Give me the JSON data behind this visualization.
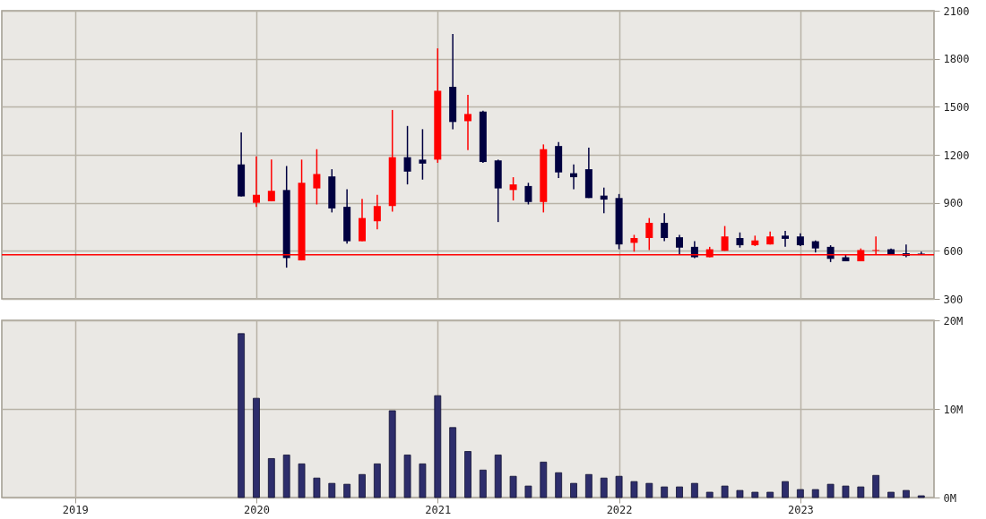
{
  "chart_data": [
    {
      "type": "candlestick",
      "x": [
        "2019-12",
        "2020-01",
        "2020-02",
        "2020-03",
        "2020-04",
        "2020-05",
        "2020-06",
        "2020-07",
        "2020-08",
        "2020-09",
        "2020-10",
        "2020-11",
        "2020-12",
        "2021-01",
        "2021-02",
        "2021-03",
        "2021-04",
        "2021-05",
        "2021-06",
        "2021-07",
        "2021-08",
        "2021-09",
        "2021-10",
        "2021-11",
        "2021-12",
        "2022-01",
        "2022-02",
        "2022-03",
        "2022-04",
        "2022-05",
        "2022-06",
        "2022-07",
        "2022-08",
        "2022-09",
        "2022-10",
        "2022-11",
        "2022-12",
        "2023-01",
        "2023-02",
        "2023-03",
        "2023-04",
        "2023-05",
        "2023-06",
        "2023-07",
        "2023-08",
        "2023-09"
      ],
      "ohlc": [
        [
          1140,
          1340,
          940,
          940
        ],
        [
          900,
          1190,
          875,
          950
        ],
        [
          910,
          1170,
          910,
          975
        ],
        [
          980,
          1130,
          495,
          555
        ],
        [
          540,
          1170,
          540,
          1025
        ],
        [
          990,
          1235,
          890,
          1080
        ],
        [
          1065,
          1110,
          840,
          865
        ],
        [
          875,
          985,
          645,
          660
        ],
        [
          660,
          925,
          660,
          805
        ],
        [
          785,
          950,
          735,
          880
        ],
        [
          880,
          1480,
          845,
          1185
        ],
        [
          1185,
          1380,
          1015,
          1095
        ],
        [
          1170,
          1360,
          1045,
          1145
        ],
        [
          1170,
          1865,
          1150,
          1600
        ],
        [
          1625,
          1955,
          1360,
          1405
        ],
        [
          1410,
          1575,
          1230,
          1455
        ],
        [
          1470,
          1475,
          1150,
          1155
        ],
        [
          1165,
          1170,
          780,
          990
        ],
        [
          980,
          1060,
          915,
          1015
        ],
        [
          1005,
          1025,
          890,
          905
        ],
        [
          905,
          1265,
          840,
          1235
        ],
        [
          1255,
          1280,
          1055,
          1090
        ],
        [
          1085,
          1140,
          985,
          1060
        ],
        [
          1110,
          1245,
          930,
          930
        ],
        [
          945,
          995,
          835,
          920
        ],
        [
          930,
          955,
          610,
          640
        ],
        [
          650,
          700,
          595,
          680
        ],
        [
          680,
          805,
          605,
          775
        ],
        [
          775,
          835,
          660,
          680
        ],
        [
          685,
          700,
          575,
          620
        ],
        [
          625,
          660,
          555,
          560
        ],
        [
          560,
          625,
          560,
          610
        ],
        [
          600,
          755,
          600,
          690
        ],
        [
          680,
          715,
          620,
          635
        ],
        [
          635,
          695,
          630,
          665
        ],
        [
          640,
          720,
          640,
          690
        ],
        [
          695,
          725,
          625,
          675
        ],
        [
          690,
          710,
          630,
          635
        ],
        [
          660,
          665,
          590,
          615
        ],
        [
          625,
          635,
          530,
          550
        ],
        [
          560,
          575,
          535,
          535
        ],
        [
          535,
          615,
          535,
          605
        ],
        [
          600,
          690,
          575,
          605
        ],
        [
          610,
          615,
          575,
          578
        ],
        [
          585,
          640,
          560,
          568
        ],
        [
          585,
          595,
          575,
          582
        ]
      ],
      "colors": [
        "#000040",
        "#ff0000",
        "#ff0000",
        "#000040",
        "#ff0000",
        "#ff0000",
        "#000040",
        "#000040",
        "#ff0000",
        "#ff0000",
        "#ff0000",
        "#000040",
        "#000040",
        "#ff0000",
        "#000040",
        "#ff0000",
        "#000040",
        "#000040",
        "#ff0000",
        "#000040",
        "#ff0000",
        "#000040",
        "#000040",
        "#000040",
        "#000040",
        "#000040",
        "#ff0000",
        "#ff0000",
        "#000040",
        "#000040",
        "#000040",
        "#ff0000",
        "#ff0000",
        "#000040",
        "#ff0000",
        "#ff0000",
        "#000040",
        "#000040",
        "#000040",
        "#000040",
        "#000040",
        "#ff0000",
        "#ff0000",
        "#000040",
        "#000040",
        "#000040"
      ],
      "xlim": [
        "2018-08-15",
        "2023-09-18"
      ],
      "xticks": [
        "2019",
        "2020",
        "2021",
        "2022",
        "2023"
      ],
      "ylim": [
        300,
        2100
      ],
      "yticks": [
        300,
        600,
        900,
        1200,
        1500,
        1800,
        2100
      ],
      "ref_lines": [
        {
          "axis": "y",
          "value": 575,
          "color": "#ff0000"
        }
      ],
      "grid": true,
      "tick_labels": "y"
    },
    {
      "type": "bar",
      "x": [
        "2019-12",
        "2020-01",
        "2020-02",
        "2020-03",
        "2020-04",
        "2020-05",
        "2020-06",
        "2020-07",
        "2020-08",
        "2020-09",
        "2020-10",
        "2020-11",
        "2020-12",
        "2021-01",
        "2021-02",
        "2021-03",
        "2021-04",
        "2021-05",
        "2021-06",
        "2021-07",
        "2021-08",
        "2021-09",
        "2021-10",
        "2021-11",
        "2021-12",
        "2022-01",
        "2022-02",
        "2022-03",
        "2022-04",
        "2022-05",
        "2022-06",
        "2022-07",
        "2022-08",
        "2022-09",
        "2022-10",
        "2022-11",
        "2022-12",
        "2023-01",
        "2023-02",
        "2023-03",
        "2023-04",
        "2023-05",
        "2023-06",
        "2023-07",
        "2023-08",
        "2023-09"
      ],
      "values": [
        18.5,
        11.2,
        4.4,
        4.8,
        3.8,
        2.2,
        1.6,
        1.5,
        2.6,
        3.8,
        9.8,
        4.8,
        3.8,
        11.5,
        7.9,
        5.2,
        3.1,
        4.8,
        2.4,
        1.3,
        4.0,
        2.8,
        1.6,
        2.6,
        2.2,
        2.4,
        1.8,
        1.6,
        1.2,
        1.2,
        1.6,
        0.6,
        1.3,
        0.8,
        0.6,
        0.6,
        1.8,
        0.9,
        0.9,
        1.5,
        1.3,
        1.2,
        2.5,
        0.6,
        0.8,
        0.2
      ],
      "color": "#2d2d6b",
      "xlim": [
        "2018-08-15",
        "2023-09-18"
      ],
      "xticks": [
        "2019",
        "2020",
        "2021",
        "2022",
        "2023"
      ],
      "ylim": [
        0,
        20
      ],
      "yticks": [
        {
          "value": 0,
          "label": "0M"
        },
        {
          "value": 10,
          "label": "10M"
        },
        {
          "value": 20,
          "label": "20M"
        }
      ],
      "grid": true
    }
  ]
}
